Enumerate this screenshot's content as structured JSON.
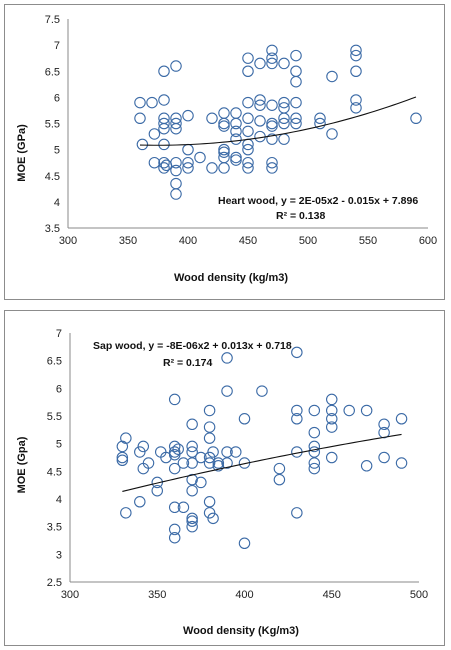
{
  "chart_data": [
    {
      "type": "scatter",
      "xlabel": "Wood density (kg/m3)",
      "ylabel": "MOE (GPa)",
      "xlim": [
        300,
        600
      ],
      "ylim": [
        3.5,
        7.5
      ],
      "xticks": [
        300,
        350,
        400,
        450,
        500,
        550,
        600
      ],
      "yticks": [
        3.5,
        4,
        4.5,
        5,
        5.5,
        6,
        6.5,
        7,
        7.5
      ],
      "equation_line1": "Heart wood, y = 2E-05x2 - 0.015x + 7.896",
      "equation_line2": "R² = 0.138",
      "trendline": {
        "a": 2e-05,
        "b": -0.015,
        "c": 7.896,
        "x_from": 360,
        "x_to": 590
      },
      "points": [
        [
          360,
          5.9
        ],
        [
          360,
          5.6
        ],
        [
          362,
          5.1
        ],
        [
          370,
          5.9
        ],
        [
          372,
          5.3
        ],
        [
          372,
          4.75
        ],
        [
          380,
          6.5
        ],
        [
          380,
          5.95
        ],
        [
          380,
          5.6
        ],
        [
          380,
          5.5
        ],
        [
          380,
          5.4
        ],
        [
          380,
          5.1
        ],
        [
          380,
          4.75
        ],
        [
          380,
          4.65
        ],
        [
          382,
          4.7
        ],
        [
          390,
          6.6
        ],
        [
          390,
          5.6
        ],
        [
          390,
          5.5
        ],
        [
          390,
          5.4
        ],
        [
          390,
          4.75
        ],
        [
          390,
          4.6
        ],
        [
          390,
          4.35
        ],
        [
          390,
          4.15
        ],
        [
          400,
          5.65
        ],
        [
          400,
          5.0
        ],
        [
          400,
          4.75
        ],
        [
          400,
          4.65
        ],
        [
          410,
          4.85
        ],
        [
          420,
          5.6
        ],
        [
          420,
          4.65
        ],
        [
          430,
          5.7
        ],
        [
          430,
          5.5
        ],
        [
          430,
          5.45
        ],
        [
          430,
          4.95
        ],
        [
          430,
          4.85
        ],
        [
          430,
          4.65
        ],
        [
          430,
          5.0
        ],
        [
          440,
          5.7
        ],
        [
          440,
          5.5
        ],
        [
          440,
          5.35
        ],
        [
          440,
          5.2
        ],
        [
          440,
          4.85
        ],
        [
          440,
          4.8
        ],
        [
          450,
          6.75
        ],
        [
          450,
          6.5
        ],
        [
          450,
          5.9
        ],
        [
          450,
          5.6
        ],
        [
          450,
          5.35
        ],
        [
          450,
          5.1
        ],
        [
          450,
          5.0
        ],
        [
          450,
          4.75
        ],
        [
          450,
          4.65
        ],
        [
          460,
          6.65
        ],
        [
          460,
          5.95
        ],
        [
          460,
          5.85
        ],
        [
          460,
          5.55
        ],
        [
          460,
          5.25
        ],
        [
          470,
          6.9
        ],
        [
          470,
          6.75
        ],
        [
          470,
          6.65
        ],
        [
          470,
          5.85
        ],
        [
          470,
          5.5
        ],
        [
          470,
          5.45
        ],
        [
          470,
          5.2
        ],
        [
          470,
          4.75
        ],
        [
          470,
          4.65
        ],
        [
          480,
          6.65
        ],
        [
          480,
          5.9
        ],
        [
          480,
          5.8
        ],
        [
          480,
          5.6
        ],
        [
          480,
          5.5
        ],
        [
          480,
          5.2
        ],
        [
          490,
          6.8
        ],
        [
          490,
          6.5
        ],
        [
          490,
          6.3
        ],
        [
          490,
          5.9
        ],
        [
          490,
          5.6
        ],
        [
          490,
          5.5
        ],
        [
          510,
          5.6
        ],
        [
          510,
          5.5
        ],
        [
          520,
          6.4
        ],
        [
          520,
          5.3
        ],
        [
          540,
          6.9
        ],
        [
          540,
          6.8
        ],
        [
          540,
          6.5
        ],
        [
          540,
          5.95
        ],
        [
          540,
          5.8
        ],
        [
          590,
          5.6
        ]
      ]
    },
    {
      "type": "scatter",
      "xlabel": "Wood density (Kg/m3)",
      "ylabel": "MOE (Gpa)",
      "xlim": [
        300,
        500
      ],
      "ylim": [
        2.5,
        7
      ],
      "xticks": [
        300,
        350,
        400,
        450,
        500
      ],
      "yticks": [
        2.5,
        3,
        3.5,
        4,
        4.5,
        5,
        5.5,
        6,
        6.5,
        7
      ],
      "equation_line1": "Sap wood, y = -8E-06x2 + 0.013x + 0.718",
      "equation_line2": "R² = 0.174",
      "trendline": {
        "a": -8e-06,
        "b": 0.013,
        "c": 0.718,
        "x_from": 330,
        "x_to": 490
      },
      "points": [
        [
          330,
          4.95
        ],
        [
          330,
          4.75
        ],
        [
          330,
          4.7
        ],
        [
          332,
          5.1
        ],
        [
          332,
          3.75
        ],
        [
          340,
          4.85
        ],
        [
          340,
          3.95
        ],
        [
          342,
          4.95
        ],
        [
          342,
          4.55
        ],
        [
          345,
          4.65
        ],
        [
          350,
          4.3
        ],
        [
          350,
          4.15
        ],
        [
          352,
          4.85
        ],
        [
          355,
          4.75
        ],
        [
          360,
          5.8
        ],
        [
          360,
          4.95
        ],
        [
          360,
          4.85
        ],
        [
          360,
          4.8
        ],
        [
          360,
          4.55
        ],
        [
          360,
          3.85
        ],
        [
          360,
          3.45
        ],
        [
          360,
          3.3
        ],
        [
          362,
          4.9
        ],
        [
          365,
          4.65
        ],
        [
          365,
          3.85
        ],
        [
          370,
          5.35
        ],
        [
          370,
          4.95
        ],
        [
          370,
          4.85
        ],
        [
          370,
          4.65
        ],
        [
          370,
          4.35
        ],
        [
          370,
          4.15
        ],
        [
          370,
          3.65
        ],
        [
          370,
          3.6
        ],
        [
          370,
          3.5
        ],
        [
          375,
          4.75
        ],
        [
          375,
          4.3
        ],
        [
          380,
          5.6
        ],
        [
          380,
          5.3
        ],
        [
          380,
          5.1
        ],
        [
          380,
          4.75
        ],
        [
          380,
          4.65
        ],
        [
          380,
          3.95
        ],
        [
          380,
          3.75
        ],
        [
          382,
          3.65
        ],
        [
          382,
          4.85
        ],
        [
          385,
          4.65
        ],
        [
          385,
          4.6
        ],
        [
          390,
          6.55
        ],
        [
          390,
          5.95
        ],
        [
          390,
          4.85
        ],
        [
          390,
          4.65
        ],
        [
          395,
          4.85
        ],
        [
          400,
          5.45
        ],
        [
          400,
          4.65
        ],
        [
          400,
          3.2
        ],
        [
          410,
          5.95
        ],
        [
          420,
          4.55
        ],
        [
          420,
          4.35
        ],
        [
          430,
          6.65
        ],
        [
          430,
          5.6
        ],
        [
          430,
          5.45
        ],
        [
          430,
          4.85
        ],
        [
          430,
          3.75
        ],
        [
          440,
          5.6
        ],
        [
          440,
          5.2
        ],
        [
          440,
          4.95
        ],
        [
          440,
          4.85
        ],
        [
          440,
          4.65
        ],
        [
          440,
          4.55
        ],
        [
          450,
          5.8
        ],
        [
          450,
          5.6
        ],
        [
          450,
          5.45
        ],
        [
          450,
          5.3
        ],
        [
          450,
          4.75
        ],
        [
          460,
          5.6
        ],
        [
          470,
          5.6
        ],
        [
          470,
          4.6
        ],
        [
          480,
          5.35
        ],
        [
          480,
          5.2
        ],
        [
          480,
          4.75
        ],
        [
          490,
          5.45
        ],
        [
          490,
          4.65
        ]
      ]
    }
  ]
}
